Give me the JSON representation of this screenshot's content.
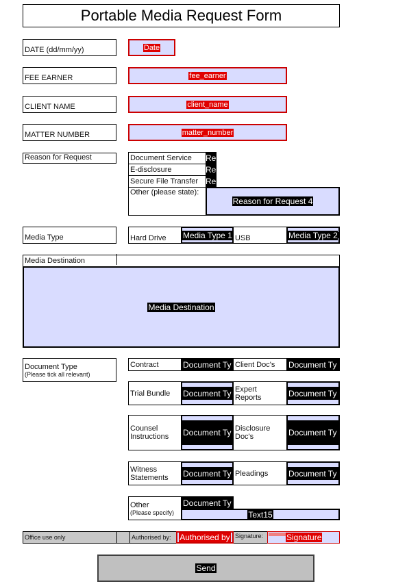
{
  "form": {
    "title": "Portable Media Request Form"
  },
  "fields": {
    "date": {
      "label": "DATE (dd/mm/yy)",
      "value": "Date"
    },
    "fee_earner": {
      "label": "FEE EARNER",
      "value": "fee_earner"
    },
    "client_name": {
      "label": "CLIENT NAME",
      "value": "client_name"
    },
    "matter_number": {
      "label": "MATTER NUMBER",
      "value": "matter_number"
    }
  },
  "reason": {
    "label": "Reason for Request",
    "options": [
      {
        "label": "Document Service",
        "field": "Re"
      },
      {
        "label": "E-disclosure",
        "field": "Re"
      },
      {
        "label": "Secure File Transfer",
        "field": "Re"
      }
    ],
    "other_label": "Other (please state):",
    "other_field": "Reason for Request 4"
  },
  "media_type": {
    "label": "Media Type",
    "options": [
      {
        "label": "Hard Drive",
        "field": "Media Type 1"
      },
      {
        "label": "USB",
        "field": "Media Type 2"
      }
    ]
  },
  "media_destination": {
    "label": "Media Destination",
    "field": "Media Destination"
  },
  "document_type": {
    "label": "Document Type",
    "sublabel": "(Please tick all relevant)",
    "options": [
      "Contract",
      "Client Doc's",
      "Trial Bundle",
      "Expert Reports",
      "Counsel Instructions",
      "Disclosure Doc's",
      "Witness Statements",
      "Pleadings"
    ],
    "field": "Document Ty",
    "other_label": "Other",
    "other_sublabel": "(Please specify)",
    "other_text": "Text15"
  },
  "office": {
    "label": "Office use only",
    "authorised_label": "Authorised by:",
    "authorised_field": "Authorised by",
    "signature_label": "Signature:",
    "signature_field": "Signature"
  },
  "send": {
    "label": "Send"
  },
  "colors": {
    "required_field": "#e00000",
    "field_fill": "#d9dcff",
    "office_fill": "#c8c8c8"
  }
}
